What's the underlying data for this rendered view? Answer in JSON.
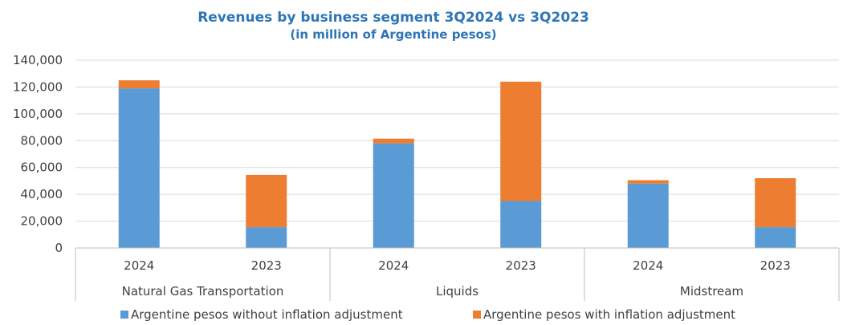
{
  "chart_data": {
    "type": "bar",
    "stacked": true,
    "title": "Revenues by business segment 3Q2024 vs 3Q2023",
    "subtitle": "(in million of Argentine pesos)",
    "xlabel": "",
    "ylabel": "",
    "ylim": [
      0,
      140000
    ],
    "yticks": [
      "0",
      "20,000",
      "40,000",
      "60,000",
      "80,000",
      "100,000",
      "120,000",
      "140,000"
    ],
    "yticks_values": [
      0,
      20000,
      40000,
      60000,
      80000,
      100000,
      120000,
      140000
    ],
    "grid": true,
    "legend_position": "bottom",
    "groups": [
      "Natural Gas Transportation",
      "Liquids",
      "Midstream"
    ],
    "categories": [
      "2024",
      "2023",
      "2024",
      "2023",
      "2024",
      "2023"
    ],
    "category_group": [
      0,
      0,
      1,
      1,
      2,
      2
    ],
    "series": [
      {
        "name": "Argentine pesos without inflation adjustment",
        "color": "#5B9BD5",
        "values": [
          119000,
          15500,
          78000,
          35000,
          48000,
          15500
        ]
      },
      {
        "name": "Argentine pesos with inflation adjustment",
        "color": "#ED7D31",
        "values": [
          6000,
          39000,
          3500,
          89000,
          2500,
          36500
        ]
      }
    ]
  }
}
